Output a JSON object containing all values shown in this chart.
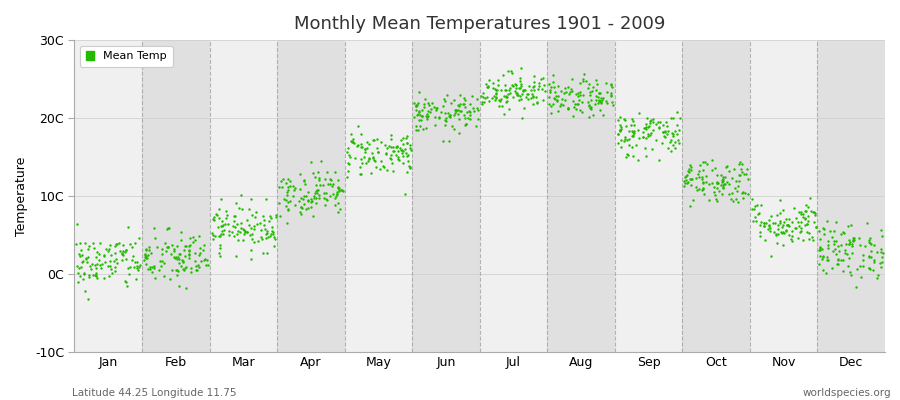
{
  "title": "Monthly Mean Temperatures 1901 - 2009",
  "ylabel": "Temperature",
  "subtitle_left": "Latitude 44.25 Longitude 11.75",
  "subtitle_right": "worldspecies.org",
  "ylim": [
    -10,
    30
  ],
  "yticks": [
    -10,
    0,
    10,
    20,
    30
  ],
  "ytick_labels": [
    "-10C",
    "0C",
    "10C",
    "20C",
    "30C"
  ],
  "months": [
    "Jan",
    "Feb",
    "Mar",
    "Apr",
    "May",
    "Jun",
    "Jul",
    "Aug",
    "Sep",
    "Oct",
    "Nov",
    "Dec"
  ],
  "dot_color": "#22bb00",
  "dot_size": 3,
  "background_color": "#ffffff",
  "plot_bg_color": "#ffffff",
  "band_color_light": "#f0f0f0",
  "band_color_dark": "#e0e0e0",
  "dashed_line_color": "#999999",
  "n_years": 109,
  "mean_temps": [
    1.5,
    2.0,
    6.0,
    10.5,
    15.5,
    20.5,
    23.5,
    22.5,
    18.0,
    12.0,
    6.5,
    3.0
  ],
  "std_temps": [
    1.8,
    1.8,
    1.5,
    1.5,
    1.5,
    1.2,
    1.2,
    1.2,
    1.5,
    1.5,
    1.5,
    1.8
  ],
  "seed": 42
}
